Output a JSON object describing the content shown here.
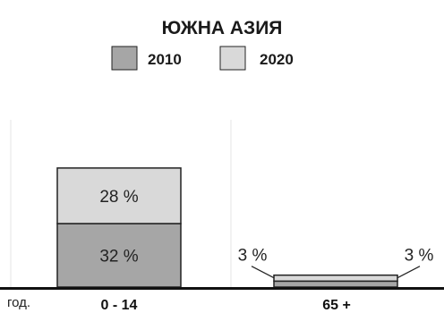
{
  "chart_data": {
    "type": "bar",
    "title": "ЮЖНА АЗИЯ",
    "categories": [
      "0 - 14",
      "65 +"
    ],
    "series": [
      {
        "name": "2010",
        "values": [
          32,
          3
        ],
        "labels": [
          "32 %",
          "3 %"
        ]
      },
      {
        "name": "2020",
        "values": [
          28,
          3
        ],
        "labels": [
          "28 %",
          "3 %"
        ]
      }
    ],
    "x_unit_label": "год.",
    "stacked": true,
    "legend_position": "top",
    "grid": false
  },
  "colors": {
    "series_2010": "#a6a6a6",
    "series_2020": "#d9d9d9",
    "outline": "#222222",
    "baseline": "#111111",
    "divider": "#e6e6e6"
  }
}
